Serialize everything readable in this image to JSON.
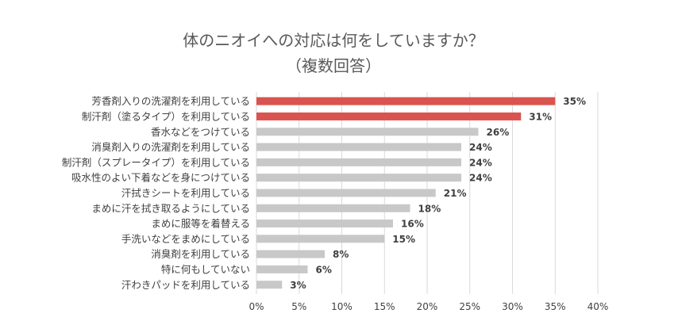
{
  "chart_data": {
    "type": "bar",
    "orientation": "horizontal",
    "title": "体のニオイへの対応は何をしていますか？",
    "subtitle": "（複数回答）",
    "categories": [
      "芳香剤入りの洗濯剤を利用している",
      "制汗剤（塗るタイプ）を利用している",
      "香水などをつけている",
      "消臭剤入りの洗濯剤を利用している",
      "制汗剤（スプレータイプ）を利用している",
      "吸水性のよい下着などを身につけている",
      "汗拭きシートを利用している",
      "まめに汗を拭き取るようにしている",
      "まめに服等を着替える",
      "手洗いなどをまめにしている",
      "消臭剤を利用している",
      "特に何もしていない",
      "汗わきパッドを利用している"
    ],
    "values": [
      35,
      31,
      26,
      24,
      24,
      24,
      21,
      18,
      16,
      15,
      8,
      6,
      3
    ],
    "value_labels": [
      "35%",
      "31%",
      "26%",
      "24%",
      "24%",
      "24%",
      "21%",
      "18%",
      "16%",
      "15%",
      "8%",
      "6%",
      "3%"
    ],
    "highlight_count": 2,
    "xlim": [
      0,
      40
    ],
    "xticks": [
      "0%",
      "5%",
      "10%",
      "15%",
      "20%",
      "25%",
      "30%",
      "35%",
      "40%"
    ],
    "grid": true,
    "legend": "none",
    "colors": {
      "highlight": "#d9534f",
      "bar": "#c8c8c8",
      "grid": "#d9d9d9",
      "text": "#404040"
    }
  }
}
